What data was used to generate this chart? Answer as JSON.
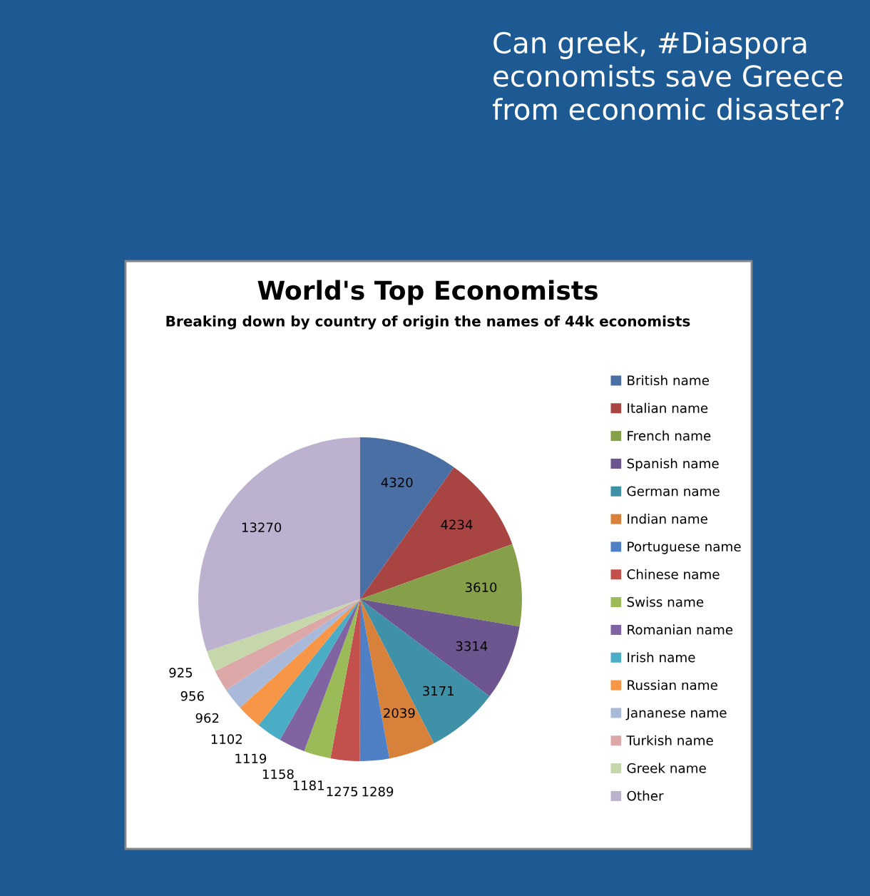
{
  "chart_data": {
    "type": "pie",
    "title": "World's Top Economists",
    "subtitle": "Breaking down by country of origin the names of 44k economists",
    "annotations": [
      "Can greek, #Diaspora economists save Greece from economic disaster?"
    ],
    "categories": [
      "British name",
      "Italian name",
      "French name",
      "Spanish name",
      "German name",
      "Indian name",
      "Portuguese name",
      "Chinese name",
      "Swiss name",
      "Romanian name",
      "Irish name",
      "Russian name",
      "Jananese name",
      "Turkish name",
      "Greek name",
      "Other"
    ],
    "values": [
      4320,
      4234,
      3610,
      3314,
      3171,
      2039,
      1289,
      1275,
      1181,
      1158,
      1119,
      1102,
      962,
      956,
      925,
      13270
    ],
    "colors": [
      "#4a6fa5",
      "#a84542",
      "#86a04a",
      "#6d568f",
      "#3f91a8",
      "#d8813a",
      "#4f7fc4",
      "#c4504d",
      "#9bbb59",
      "#8064a2",
      "#4bacc6",
      "#f79646",
      "#a9b9d9",
      "#dba8a7",
      "#c6d7ac",
      "#bcb2cf"
    ],
    "data_labels": true,
    "legend": "right"
  }
}
